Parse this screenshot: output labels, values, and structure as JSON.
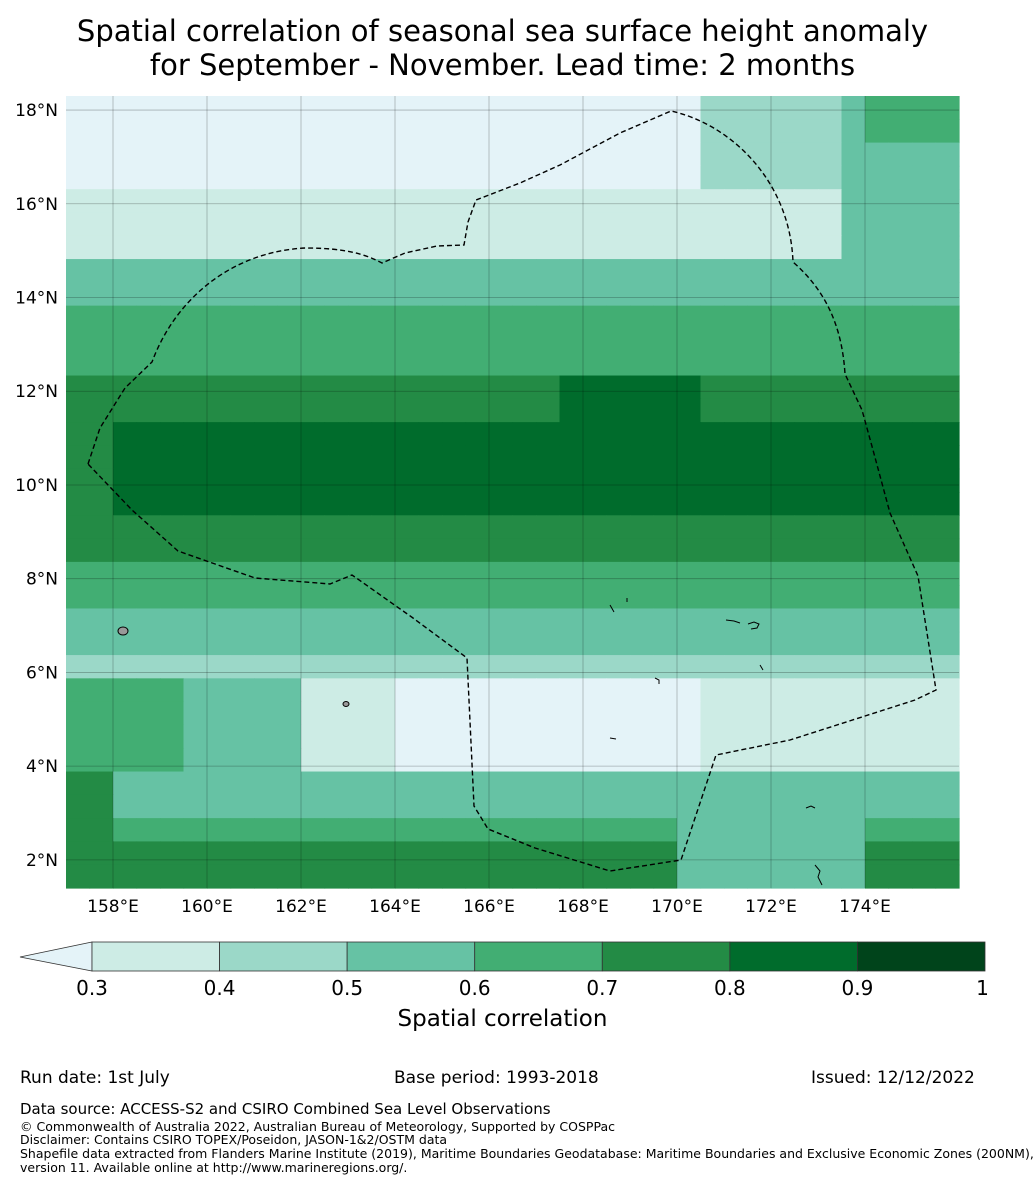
{
  "title": {
    "line1": "Spatial correlation of seasonal sea surface height anomaly",
    "line2": "for September - November. Lead time: 2 months"
  },
  "map": {
    "lat_range": [
      1.4,
      18.3
    ],
    "lon_range": [
      157.0,
      176.0
    ],
    "lat_ticks": [
      "2°N",
      "4°N",
      "6°N",
      "8°N",
      "10°N",
      "12°N",
      "14°N",
      "16°N",
      "18°N"
    ],
    "lon_ticks": [
      "158°E",
      "160°E",
      "162°E",
      "164°E",
      "166°E",
      "168°E",
      "170°E",
      "172°E",
      "174°E"
    ],
    "boundary_style": "dashed",
    "gridlines": true,
    "colors": [
      "#e4f3f8",
      "#cdece5",
      "#9bd8c8",
      "#66c2a4",
      "#42ae73",
      "#238b45",
      "#006c2c",
      "#00441b"
    ]
  },
  "colorbar": {
    "ticks": [
      "0.3",
      "0.4",
      "0.5",
      "0.6",
      "0.7",
      "0.8",
      "0.9",
      "1"
    ],
    "label": "Spatial correlation",
    "extend": "min"
  },
  "meta": {
    "run_date": "Run date: 1st July",
    "base_period": "Base period: 1993-2018",
    "issued": "Issued: 12/12/2022"
  },
  "footer": {
    "data_source": "Data source: ACCESS-S2 and CSIRO Combined Sea Level Observations",
    "copyright": "© Commonwealth of Australia 2022, Australian Bureau of Meteorology, Supported by COSPPac",
    "disclaimer": "Disclaimer: Contains CSIRO TOPEX/Poseidon, JASON-1&2/OSTM data",
    "shapefile": "Shapefile data extracted from Flanders Marine Institute (2019), Maritime Boundaries Geodatabase: Maritime Boundaries and Exclusive Economic Zones (200NM),",
    "version": "version 11. Available online at http://www.marineregions.org/."
  }
}
